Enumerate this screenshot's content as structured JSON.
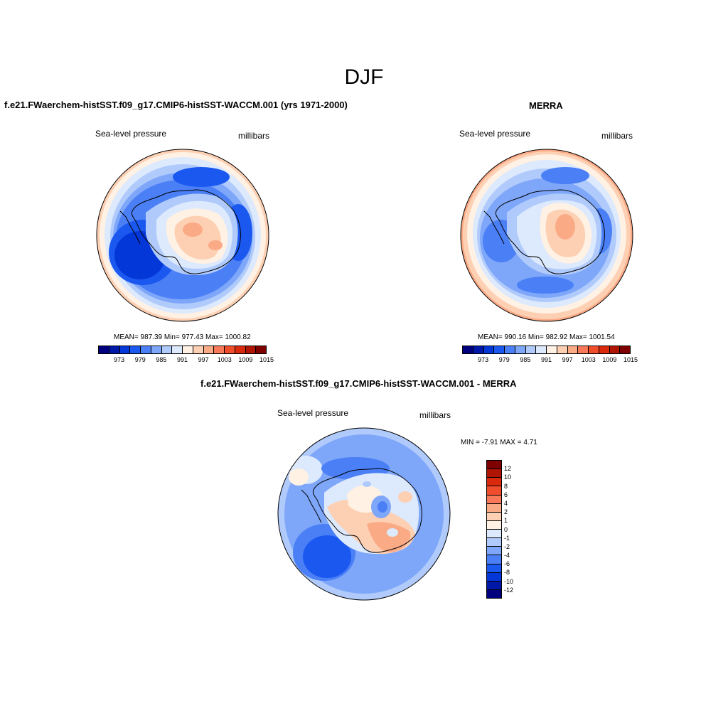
{
  "title": "DJF",
  "panels": [
    {
      "title": "f.e21.FWaerchem-histSST.f09_g17.CMIP6-histSST-WACCM.001 (yrs 1971-2000)",
      "left_label": "Sea-level pressure",
      "right_label": "millibars",
      "stats": "MEAN= 987.39  Min= 977.43  Max= 1000.82"
    },
    {
      "title": "MERRA",
      "left_label": "Sea-level pressure",
      "right_label": "millibars",
      "stats": "MEAN= 990.16  Min= 982.92  Max= 1001.54"
    },
    {
      "title": "f.e21.FWaerchem-histSST.f09_g17.CMIP6-histSST-WACCM.001 - MERRA",
      "left_label": "Sea-level pressure",
      "right_label": "millibars",
      "stats": "MIN =  -7.91 MAX =   4.71"
    }
  ],
  "colorbar_field": {
    "ticks": [
      "973",
      "979",
      "985",
      "991",
      "997",
      "1003",
      "1009",
      "1015"
    ],
    "colors": [
      "#00007f",
      "#0018a8",
      "#0437d8",
      "#1b58f0",
      "#4a7ff6",
      "#7ea6f9",
      "#b0cbfb",
      "#dde9fd",
      "#fff1e3",
      "#fdd0b4",
      "#fbaa86",
      "#f7795a",
      "#f04d2c",
      "#d92a0e",
      "#b01405",
      "#7f0000"
    ]
  },
  "colorbar_diff": {
    "ticks": [
      "12",
      "10",
      "8",
      "6",
      "4",
      "2",
      "1",
      "0",
      "-1",
      "-2",
      "-4",
      "-6",
      "-8",
      "-10",
      "-12"
    ],
    "colors": [
      "#7f0000",
      "#b01405",
      "#d92a0e",
      "#f04d2c",
      "#f7795a",
      "#fbaa86",
      "#fdd0b4",
      "#fff1e3",
      "#dde9fd",
      "#b0cbfb",
      "#7ea6f9",
      "#4a7ff6",
      "#1b58f0",
      "#0437d8",
      "#0018a8",
      "#00007f"
    ]
  },
  "map_colors": {
    "deep_blue": "#0437d8",
    "mid_blue": "#1b58f0",
    "blue": "#4a7ff6",
    "light_blue": "#7ea6f9",
    "pale_blue": "#b0cbfb",
    "very_pale_blue": "#dde9fd",
    "cream": "#fff1e3",
    "peach": "#fdd0b4",
    "salmon": "#fbaa86",
    "coral": "#f7795a"
  }
}
